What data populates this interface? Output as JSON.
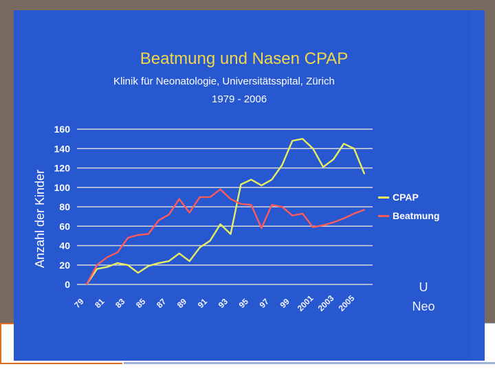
{
  "chart_data": {
    "type": "line",
    "title": "Beatmung und Nasen CPAP",
    "subtitle": "Klinik für Neonatologie, Universitätsspital, Zürich",
    "years_label": "1979 - 2006",
    "xlabel": "",
    "ylabel": "Anzahl der Kinder",
    "ylim": [
      0,
      160
    ],
    "yticks": [
      "0",
      "20",
      "40",
      "60",
      "80",
      "100",
      "120",
      "140",
      "160"
    ],
    "x": [
      1979,
      1980,
      1981,
      1982,
      1983,
      1984,
      1985,
      1986,
      1987,
      1988,
      1989,
      1990,
      1991,
      1992,
      1993,
      1994,
      1995,
      1996,
      1997,
      1998,
      1999,
      2000,
      2001,
      2002,
      2003,
      2004,
      2005,
      2006
    ],
    "xtick_labels": [
      "79",
      "81",
      "83",
      "85",
      "87",
      "89",
      "91",
      "93",
      "95",
      "97",
      "99",
      "2001",
      "2003",
      "2005"
    ],
    "xtick_values": [
      1979,
      1981,
      1983,
      1985,
      1987,
      1989,
      1991,
      1993,
      1995,
      1997,
      1999,
      2001,
      2003,
      2005
    ],
    "grid": true,
    "legend_position": "right",
    "series": [
      {
        "name": "CPAP",
        "color": "#e8f060",
        "values": [
          0,
          16,
          18,
          22,
          20,
          12,
          19,
          22,
          24,
          32,
          24,
          38,
          45,
          62,
          52,
          103,
          108,
          102,
          108,
          123,
          148,
          150,
          140,
          121,
          129,
          145,
          140,
          114
        ]
      },
      {
        "name": "Beatmung",
        "color": "#ff5a5a",
        "values": [
          0,
          20,
          28,
          33,
          48,
          51,
          52,
          66,
          72,
          88,
          74,
          90,
          90,
          98,
          88,
          83,
          82,
          58,
          82,
          80,
          71,
          73,
          59,
          61,
          64,
          68,
          73,
          77
        ]
      }
    ]
  },
  "logo": {
    "line1": "U",
    "line2": "Neo"
  }
}
